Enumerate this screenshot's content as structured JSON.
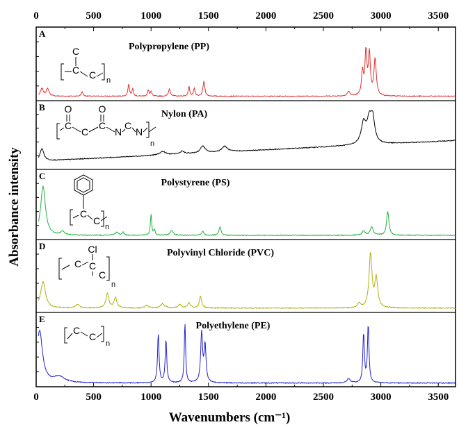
{
  "chart_data": {
    "type": "line",
    "xlabel": "Wavenumbers (cm⁻¹)",
    "ylabel": "Absorbance intensity",
    "xlim": [
      0,
      3650
    ],
    "xticks": [
      "0",
      "500",
      "1000",
      "1500",
      "2000",
      "2500",
      "3000",
      "3500"
    ],
    "grid": false,
    "panels": [
      {
        "letter": "A",
        "name": "Polypropylene (PP)",
        "color": "#e03030",
        "baseline": 0.06,
        "slope": 0.0,
        "peaks": [
          [
            50,
            0.1,
            15
          ],
          [
            100,
            0.1,
            15
          ],
          [
            400,
            0.06,
            10
          ],
          [
            805,
            0.16,
            8
          ],
          [
            840,
            0.1,
            8
          ],
          [
            975,
            0.08,
            8
          ],
          [
            1000,
            0.06,
            8
          ],
          [
            1160,
            0.1,
            10
          ],
          [
            1330,
            0.13,
            8
          ],
          [
            1376,
            0.1,
            8
          ],
          [
            1460,
            0.2,
            10
          ],
          [
            2720,
            0.06,
            15
          ],
          [
            2840,
            0.32,
            10
          ],
          [
            2870,
            0.58,
            10
          ],
          [
            2900,
            0.56,
            10
          ],
          [
            2950,
            0.5,
            12
          ]
        ]
      },
      {
        "letter": "B",
        "name": "Nylon (PA)",
        "color": "#000000",
        "baseline": 0.12,
        "slope": 0.3,
        "peaks": [
          [
            50,
            0.18,
            20
          ],
          [
            1100,
            0.05,
            30
          ],
          [
            1270,
            0.04,
            20
          ],
          [
            1450,
            0.1,
            25
          ],
          [
            1640,
            0.08,
            30
          ],
          [
            2850,
            0.3,
            25
          ],
          [
            2900,
            0.33,
            25
          ],
          [
            2930,
            0.32,
            20
          ]
        ]
      },
      {
        "letter": "C",
        "name": "Polystyrene (PS)",
        "color": "#22b040",
        "baseline": 0.06,
        "slope": 0.0,
        "peaks": [
          [
            60,
            0.7,
            25
          ],
          [
            230,
            0.05,
            20
          ],
          [
            700,
            0.04,
            20
          ],
          [
            757,
            0.05,
            8
          ],
          [
            1000,
            0.3,
            7
          ],
          [
            1030,
            0.08,
            7
          ],
          [
            1180,
            0.07,
            15
          ],
          [
            1450,
            0.06,
            10
          ],
          [
            1600,
            0.12,
            10
          ],
          [
            2850,
            0.06,
            15
          ],
          [
            2920,
            0.12,
            15
          ],
          [
            3060,
            0.34,
            12
          ]
        ]
      },
      {
        "letter": "D",
        "name": "Polyvinyl Chloride (PVC)",
        "color": "#b0b010",
        "baseline": 0.06,
        "slope": 0.0,
        "peaks": [
          [
            60,
            0.36,
            25
          ],
          [
            360,
            0.05,
            20
          ],
          [
            620,
            0.2,
            15
          ],
          [
            690,
            0.14,
            15
          ],
          [
            960,
            0.04,
            15
          ],
          [
            1100,
            0.06,
            20
          ],
          [
            1250,
            0.05,
            15
          ],
          [
            1330,
            0.07,
            15
          ],
          [
            1430,
            0.16,
            12
          ],
          [
            2810,
            0.06,
            15
          ],
          [
            2910,
            0.74,
            15
          ],
          [
            2960,
            0.4,
            15
          ]
        ]
      },
      {
        "letter": "E",
        "name": "Polyethylene (PE)",
        "color": "#2020d0",
        "baseline": 0.05,
        "slope": 0.0,
        "peaks": [
          [
            30,
            0.7,
            30
          ],
          [
            200,
            0.08,
            60
          ],
          [
            1063,
            0.66,
            8
          ],
          [
            1130,
            0.58,
            8
          ],
          [
            1295,
            0.8,
            7
          ],
          [
            1440,
            0.66,
            10
          ],
          [
            1470,
            0.5,
            10
          ],
          [
            2720,
            0.06,
            15
          ],
          [
            2850,
            0.66,
            8
          ],
          [
            2890,
            0.78,
            8
          ]
        ]
      }
    ]
  },
  "structures": {
    "pp_sub": "n",
    "pa_sub": "n",
    "ps_sub": "n",
    "pvc_sub": "n",
    "pe_sub": "n",
    "c": "C",
    "o": "O",
    "n_atom": "N",
    "cl": "Cl"
  }
}
